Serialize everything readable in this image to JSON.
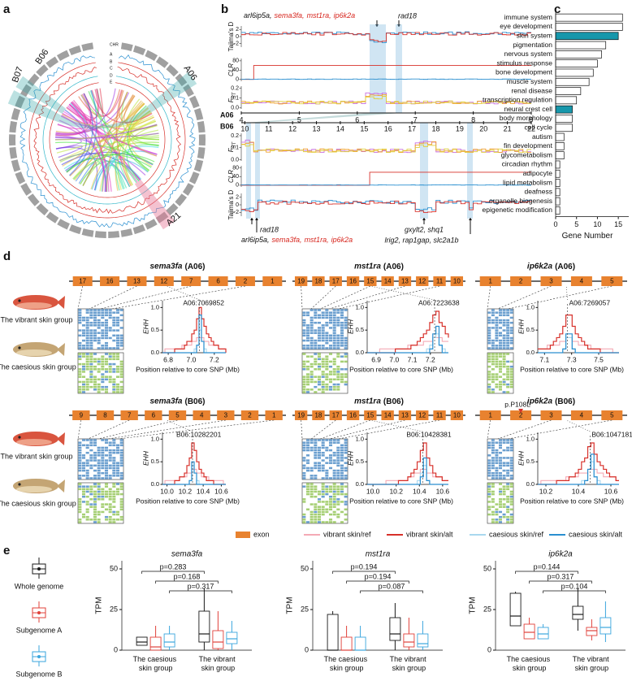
{
  "panel_labels": [
    "a",
    "b",
    "c",
    "d",
    "e"
  ],
  "panel_a": {
    "rings": [
      "CHR",
      "A",
      "B",
      "C",
      "D",
      "E"
    ],
    "highlights": [
      "B07",
      "B06",
      "A06",
      "A21"
    ]
  },
  "panel_b": {
    "genes_top": [
      "arl6ip5a,",
      "sema3fa,",
      "mst1ra,",
      "ip6k2a"
    ],
    "gene_colors": [
      "#111111",
      "#d7261e",
      "#d7261e",
      "#d7261e"
    ],
    "rad18": "rad18",
    "tracks": [
      {
        "label": "Tajima's D",
        "ticks": [
          2,
          0,
          -2
        ],
        "ylim": [
          -3,
          3
        ]
      },
      {
        "label": "CLR",
        "ticks": [
          80,
          40,
          0
        ],
        "ylim": [
          -8,
          90
        ]
      },
      {
        "label": "F",
        "sub": "ST",
        "ticks": [
          0.2,
          0.1,
          {
            "value": 0,
            "label": "0.0"
          }
        ],
        "ylim": [
          -0.01,
          0.22
        ]
      }
    ],
    "chromosomes": [
      {
        "name": "A06",
        "ticks": [
          4,
          5,
          6,
          7,
          8,
          9
        ],
        "xlim": [
          4,
          9
        ]
      },
      {
        "name": "B06",
        "ticks": [
          10,
          11,
          12,
          13,
          14,
          15,
          16,
          17,
          18,
          19,
          20,
          21,
          22
        ],
        "xlim": [
          9.85,
          22
        ]
      }
    ],
    "genes_bottom": [
      "gxylt2, shq1",
      "lrig2, rap1gap, slc2a1b"
    ]
  },
  "panel_d": {
    "genes": [
      {
        "gene": "sema3fa",
        "chrom": "(A06)",
        "exons": [
          17,
          16,
          13,
          12,
          7,
          6,
          2,
          1
        ],
        "snp": "A06:7069852",
        "xlim": [
          6.75,
          7.3
        ],
        "xticks": [
          6.8,
          {
            "value": 7,
            "label": "7.0"
          },
          7.2
        ]
      },
      {
        "gene": "mst1ra",
        "chrom": "(A06)",
        "exons": [
          19,
          18,
          17,
          16,
          15,
          14,
          13,
          12,
          11,
          10
        ],
        "snp": "A06:7223638",
        "xlim": [
          6.85,
          7.3
        ],
        "xticks": [
          6.9,
          {
            "value": 7,
            "label": "7.0"
          },
          7.1,
          7.2
        ]
      },
      {
        "gene": "ip6k2a",
        "chrom": "(A06)",
        "exons": [
          1,
          2,
          3,
          4,
          5
        ],
        "snp": "A06:7269057",
        "xlim": [
          7.05,
          7.65
        ],
        "xticks": [
          7.1,
          7.3,
          7.5
        ]
      },
      {
        "gene": "sema3fa",
        "chrom": "(B06)",
        "exons": [
          9,
          8,
          7,
          6,
          5,
          4,
          3,
          2,
          1
        ],
        "snp": "B06:10282201",
        "xlim": [
          9.95,
          10.65
        ],
        "xticks": [
          {
            "value": 10,
            "label": "10.0"
          },
          10.2,
          10.4,
          10.6
        ]
      },
      {
        "gene": "mst1ra",
        "chrom": "(B06)",
        "exons": [
          19,
          18,
          17,
          16,
          15,
          14,
          13,
          12,
          11,
          10
        ],
        "snp": "B06:10428381",
        "xlim": [
          9.95,
          10.65
        ],
        "xticks": [
          {
            "value": 10,
            "label": "10.0"
          },
          10.2,
          10.4,
          10.6
        ]
      },
      {
        "gene": "ip6k2a",
        "chrom": "(B06)",
        "exons": [
          1,
          2,
          3,
          4,
          5
        ],
        "snp": "B06:10471817",
        "xlim": [
          10.15,
          10.65
        ],
        "xticks": [
          10.2,
          10.4,
          10.6
        ],
        "variant": "p.P108L"
      }
    ],
    "groups": [
      "The vibrant skin group",
      "The caesious skin group"
    ],
    "ehh_ylabel": "EHH",
    "ehh_xlabel": "Position relative to core SNP (Mb)",
    "ehh_ylim": [
      0,
      1.15
    ],
    "ehh_yticks": [
      {
        "value": 0,
        "label": "0.0"
      },
      0.5,
      {
        "value": 1,
        "label": "1.0"
      }
    ],
    "legend": [
      {
        "name": "exon",
        "color": "#e8822f"
      },
      {
        "name": "vibrant skin/ref",
        "color": "#f4aab5"
      },
      {
        "name": "vibrant skin/alt",
        "color": "#d7302a"
      },
      {
        "name": "caesious skin/ref",
        "color": "#a9d8ef"
      },
      {
        "name": "caesious skin/alt",
        "color": "#2a8fd0"
      }
    ]
  },
  "chart_data": [
    {
      "type": "bar",
      "orientation": "horizontal",
      "categories": [
        "immune system",
        "eye development",
        "skin system",
        "pigmentation",
        "nervous system",
        "stimulus response",
        "bone development",
        "muscle system",
        "renal disease",
        "transcription regulation",
        "neural crest cell",
        "body morphology",
        "cell cycle",
        "autism",
        "fin development",
        "glycometabolism",
        "circadian rhythm",
        "adipocyte",
        "lipid metabolism",
        "deafness",
        "organelle biogenesis",
        "epigenetic modification"
      ],
      "values": [
        16,
        16,
        15,
        12,
        11,
        10,
        9,
        8,
        6,
        5,
        4,
        4,
        4,
        2,
        2,
        2,
        1,
        1,
        1,
        1,
        1,
        1
      ],
      "colors": [
        "#ffffff",
        "#ffffff",
        "#1797ab",
        "#ffffff",
        "#ffffff",
        "#ffffff",
        "#ffffff",
        "#ffffff",
        "#ffffff",
        "#ffffff",
        "#1797ab",
        "#ffffff",
        "#ffffff",
        "#ffffff",
        "#ffffff",
        "#ffffff",
        "#ffffff",
        "#ffffff",
        "#ffffff",
        "#ffffff",
        "#ffffff",
        "#ffffff"
      ],
      "xlabel": "Gene Number",
      "xlim": [
        0,
        17.5
      ],
      "xticks": [
        0,
        5,
        10,
        15
      ]
    },
    {
      "type": "box",
      "title": "sema3fa",
      "ylabel": "TPM",
      "categories": [
        "The caesious skin group",
        "The vibrant skin group"
      ],
      "series": [
        {
          "name": "Whole genome",
          "color": "#1a1a1a",
          "values": [
            [
              3,
              3,
              5,
              8,
              8
            ],
            [
              0,
              5,
              10,
              24,
              38
            ]
          ]
        },
        {
          "name": "Subgenome A",
          "color": "#e0413a",
          "values": [
            [
              0,
              0,
              2,
              8,
              15
            ],
            [
              0,
              1,
              5,
              12,
              24
            ]
          ]
        },
        {
          "name": "Subgenome B",
          "color": "#3aa6dd",
          "values": [
            [
              0,
              2,
              5,
              10,
              15
            ],
            [
              0,
              4,
              7,
              11,
              18
            ]
          ]
        }
      ],
      "ylim": [
        0,
        55
      ],
      "yticks": [
        0,
        25,
        50
      ],
      "annotations": [
        "p=0.283",
        "p=0.168",
        "p=0.317"
      ]
    },
    {
      "type": "box",
      "title": "mst1ra",
      "ylabel": "TPM",
      "categories": [
        "The caesious skin group",
        "The vibrant skin group"
      ],
      "series": [
        {
          "color": "#1a1a1a",
          "values": [
            [
              0,
              0,
              0,
              22,
              24
            ],
            [
              0,
              6,
              10,
              20,
              29
            ]
          ]
        },
        {
          "color": "#e0413a",
          "values": [
            [
              0,
              0,
              0,
              8,
              15
            ],
            [
              0,
              2,
              5,
              10,
              20
            ]
          ]
        },
        {
          "color": "#3aa6dd",
          "values": [
            [
              0,
              0,
              0,
              8,
              15
            ],
            [
              0,
              2,
              4,
              10,
              18
            ]
          ]
        }
      ],
      "ylim": [
        0,
        55
      ],
      "yticks": [
        0,
        25,
        50
      ],
      "annotations": [
        "p=0.194",
        "p=0.194",
        "p=0.087"
      ]
    },
    {
      "type": "box",
      "title": "ip6k2a",
      "ylabel": "TPM",
      "categories": [
        "The caesious skin group",
        "The vibrant skin group"
      ],
      "series": [
        {
          "color": "#1a1a1a",
          "values": [
            [
              15,
              15,
              21,
              35,
              36
            ],
            [
              12,
              19,
              22,
              27,
              38
            ]
          ]
        },
        {
          "color": "#e0413a",
          "values": [
            [
              7,
              7,
              11,
              16,
              20
            ],
            [
              6,
              9,
              12,
              14,
              19
            ]
          ]
        },
        {
          "color": "#3aa6dd",
          "values": [
            [
              7,
              7,
              10,
              14,
              16
            ],
            [
              5,
              10,
              14,
              20,
              30
            ]
          ]
        }
      ],
      "ylim": [
        0,
        55
      ],
      "yticks": [
        0,
        25,
        50
      ],
      "annotations": [
        "p=0.144",
        "p=0.317",
        "p=0.104"
      ]
    }
  ]
}
